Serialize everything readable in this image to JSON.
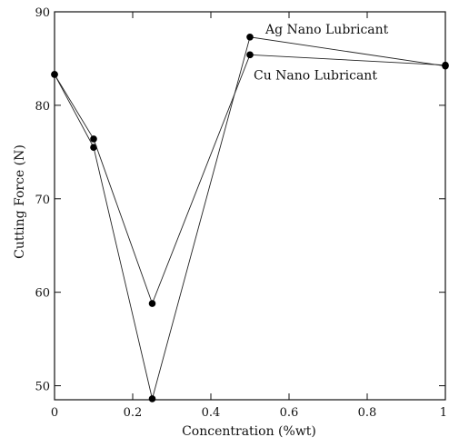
{
  "chart_data": {
    "type": "line",
    "title": "",
    "xlabel": "Concentration (%wt)",
    "ylabel": "Cutting Force (N)",
    "xlim": [
      0,
      1
    ],
    "ylim": [
      48.5,
      90
    ],
    "x_ticks": [
      0,
      0.2,
      0.4,
      0.6,
      0.8,
      1
    ],
    "x_tick_labels": [
      "0",
      "0.2",
      "0.4",
      "0.6",
      "0.8",
      "1"
    ],
    "y_ticks": [
      50,
      60,
      70,
      80,
      90
    ],
    "y_tick_labels": [
      "50",
      "60",
      "70",
      "80",
      "90"
    ],
    "grid": false,
    "legend": "none",
    "series": [
      {
        "name": "Ag Nano Lubricant",
        "marker": "circle",
        "color": "#000000",
        "x": [
          0,
          0.1,
          0.25,
          0.5,
          1
        ],
        "y": [
          83.3,
          75.5,
          48.6,
          87.3,
          84.2
        ]
      },
      {
        "name": "Cu Nano Lubricant",
        "marker": "circle",
        "color": "#000000",
        "x": [
          0,
          0.1,
          0.25,
          0.5,
          1
        ],
        "y": [
          83.3,
          76.4,
          58.8,
          85.4,
          84.3
        ]
      }
    ]
  }
}
